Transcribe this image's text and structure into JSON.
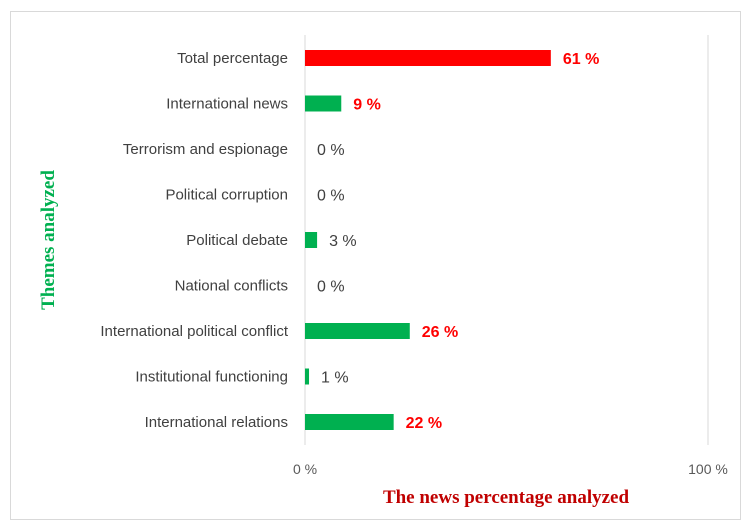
{
  "chart_data": {
    "type": "bar",
    "orientation": "horizontal",
    "categories": [
      "Total percentage",
      "International news",
      "Terrorism and espionage",
      "Political corruption",
      "Political debate",
      "National conflicts",
      "International political conflict",
      "Institutional functioning",
      "International relations"
    ],
    "values": [
      61,
      9,
      0,
      0,
      3,
      0,
      26,
      1,
      22
    ],
    "value_labels": [
      "61 %",
      "9 %",
      "0 %",
      "0 %",
      "3 %",
      "0 %",
      "26 %",
      "1 %",
      "22 %"
    ],
    "bar_colors": [
      "#ff0000",
      "#00b050",
      "#00b050",
      "#00b050",
      "#00b050",
      "#00b050",
      "#00b050",
      "#00b050",
      "#00b050"
    ],
    "value_label_colors": [
      "#ff0000",
      "#ff0000",
      "#404040",
      "#404040",
      "#404040",
      "#404040",
      "#ff0000",
      "#404040",
      "#ff0000"
    ],
    "value_label_bold": [
      true,
      true,
      false,
      false,
      false,
      false,
      true,
      false,
      true
    ],
    "xlim": [
      0,
      100
    ],
    "xticks": [
      "0 %",
      "100 %"
    ],
    "xlabel": "The news percentage analyzed",
    "ylabel": "Themes analyzed",
    "xlabel_color": "#c00000",
    "ylabel_color": "#00b050",
    "grid": "vertical gridline at 100 %",
    "legend": "none"
  }
}
